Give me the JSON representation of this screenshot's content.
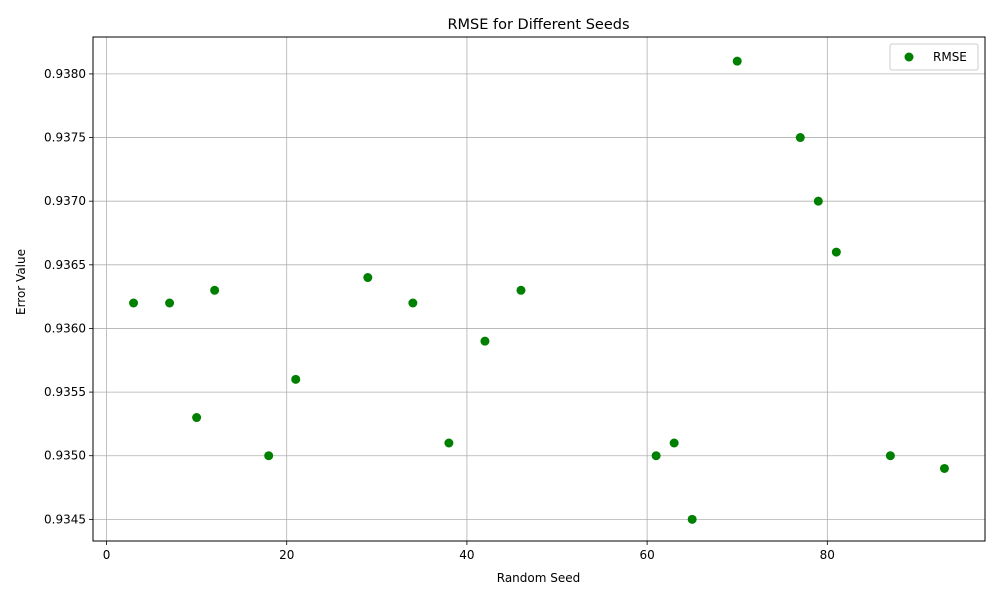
{
  "chart_data": {
    "type": "scatter",
    "title": "RMSE for Different Seeds",
    "xlabel": "Random Seed",
    "ylabel": "Error Value",
    "xlim": [
      -1.5,
      97.5
    ],
    "ylim": [
      0.93433,
      0.93829
    ],
    "xticks": [
      0,
      20,
      40,
      60,
      80
    ],
    "xtick_labels": [
      "0",
      "20",
      "40",
      "60",
      "80"
    ],
    "yticks": [
      0.9345,
      0.935,
      0.9355,
      0.936,
      0.9365,
      0.937,
      0.9375,
      0.938
    ],
    "ytick_labels": [
      "0.9345",
      "0.9350",
      "0.9355",
      "0.9360",
      "0.9365",
      "0.9370",
      "0.9375",
      "0.9380"
    ],
    "grid": true,
    "legend_position": "top-right",
    "series": [
      {
        "name": "RMSE",
        "color": "#008000",
        "x": [
          3,
          7,
          10,
          12,
          18,
          21,
          29,
          34,
          38,
          42,
          46,
          61,
          63,
          65,
          70,
          77,
          79,
          81,
          87,
          93
        ],
        "y": [
          0.9362,
          0.9362,
          0.9353,
          0.9363,
          0.935,
          0.9356,
          0.9364,
          0.9362,
          0.9351,
          0.9359,
          0.9363,
          0.935,
          0.9351,
          0.9345,
          0.9381,
          0.9375,
          0.937,
          0.9366,
          0.935,
          0.9349
        ]
      }
    ]
  }
}
